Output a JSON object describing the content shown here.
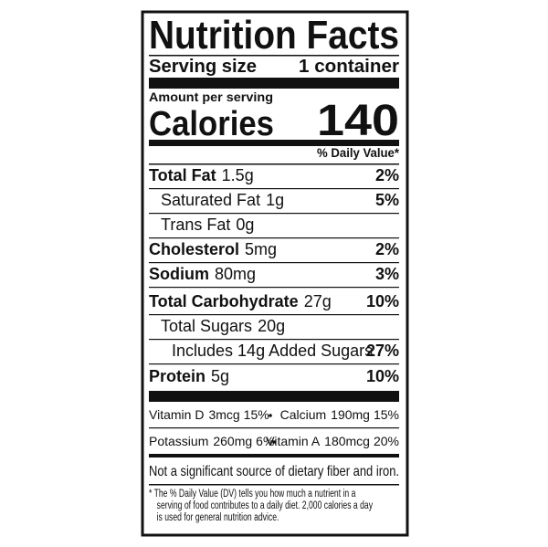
{
  "title": "Nutrition Facts",
  "serving": {
    "label": "Serving size",
    "value": "1 container"
  },
  "amount_per_serving": "Amount per serving",
  "calories": {
    "label": "Calories",
    "value": "140"
  },
  "daily_value_header": "% Daily Value*",
  "nutrients": [
    {
      "name": "Total Fat",
      "amount": "1.5g",
      "dv": "2%"
    },
    {
      "name": "Saturated Fat",
      "amount": "1g",
      "dv": "5%"
    },
    {
      "name": "Trans Fat",
      "amount": "0g"
    },
    {
      "name": "Cholesterol",
      "amount": "5mg",
      "dv": "2%"
    },
    {
      "name": "Sodium",
      "amount": "80mg",
      "dv": "3%"
    },
    {
      "name": "Total Carbohydrate",
      "amount": "27g",
      "dv": "10%"
    },
    {
      "name": "Total Sugars",
      "amount": "20g"
    },
    {
      "name": "Includes 14g Added Sugars",
      "dv": "27%"
    },
    {
      "name": "Protein",
      "amount": "5g",
      "dv": "10%"
    }
  ],
  "vitamins": [
    [
      {
        "name": "Vitamin D",
        "amount": "3mcg",
        "dv": "15%"
      },
      {
        "name": "Calcium",
        "amount": "190mg",
        "dv": "15%"
      }
    ],
    [
      {
        "name": "Potassium",
        "amount": "260mg",
        "dv": "6%"
      },
      {
        "name": "Vitamin A",
        "amount": "180mcg",
        "dv": "20%"
      }
    ]
  ],
  "note": "Not a significant source of dietary fiber and iron.",
  "footnote": [
    "* The % Daily Value (DV) tells you how much a nutrient in a",
    "serving of food contributes to a daily diet. 2,000 calories a day",
    "is used for general nutrition advice."
  ]
}
